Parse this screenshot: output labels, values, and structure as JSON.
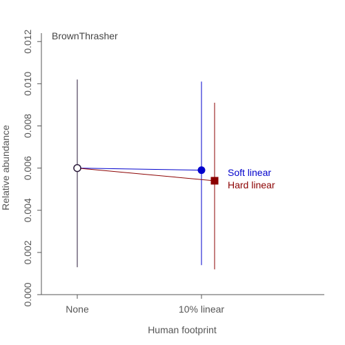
{
  "chart_data": {
    "type": "line",
    "title": "BrownThrasher",
    "xlabel": "Human footprint",
    "ylabel": "Relative abundance",
    "categories": [
      "None",
      "10% linear"
    ],
    "ylim": [
      0,
      0.0124
    ],
    "yticks": [
      "0.000",
      "0.002",
      "0.004",
      "0.006",
      "0.008",
      "0.010",
      "0.012"
    ],
    "grid": false,
    "legend_placement": "right of points",
    "baseline": {
      "category": "None",
      "value": 0.006,
      "lower": 0.0013,
      "upper": 0.0102
    },
    "series": [
      {
        "name": "Soft linear",
        "color": "#0000cc",
        "marker": "circle",
        "category": "10% linear",
        "value": 0.0059,
        "lower": 0.0014,
        "upper": 0.0101
      },
      {
        "name": "Hard linear",
        "color": "#8b0000",
        "marker": "square",
        "category": "10% linear",
        "value": 0.0054,
        "lower": 0.0012,
        "upper": 0.0091
      }
    ]
  }
}
